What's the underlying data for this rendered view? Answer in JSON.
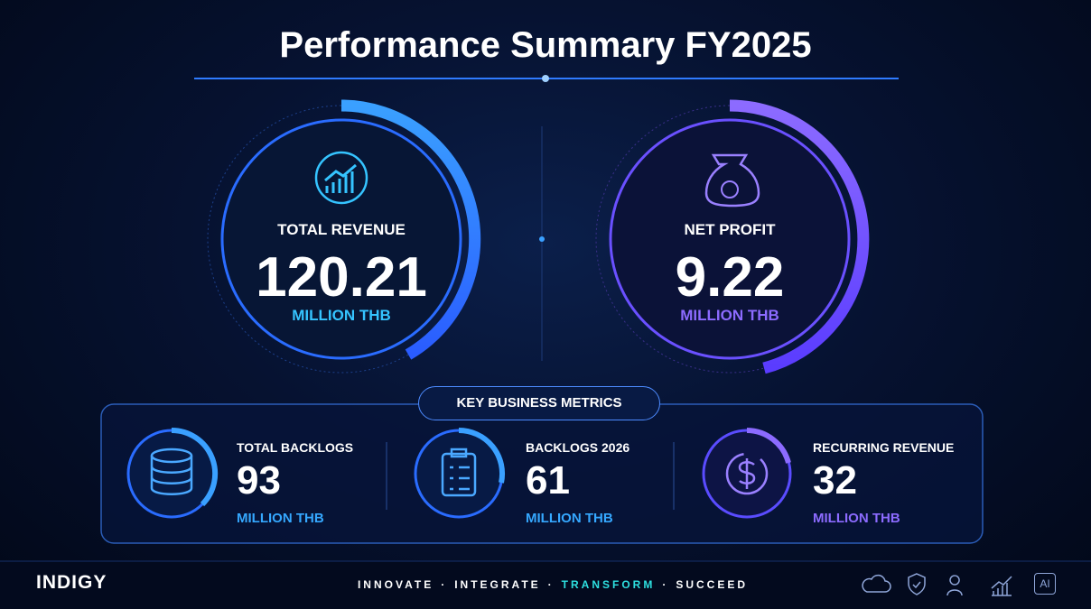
{
  "header": {
    "title": "Performance Summary FY2025"
  },
  "highlights": [
    {
      "label": "TOTAL REVENUE",
      "value": 120.21,
      "unit": "MILLION THB"
    },
    {
      "label": "NET PROFIT",
      "value": 9.22,
      "unit": "MILLION THB"
    }
  ],
  "metrics": {
    "title": "KEY BUSINESS METRICS",
    "items": [
      {
        "label": "TOTAL BACKLOGS",
        "value": 93,
        "unit": "MILLION THB"
      },
      {
        "label": "BACKLOGS 2026",
        "value": 61,
        "unit": "MILLION THB"
      },
      {
        "label": "RECURRING REVENUE",
        "value": 32,
        "unit": "MILLION THB"
      }
    ]
  },
  "footer": {
    "brand": "INDIGY",
    "tagline": [
      "INNOVATE",
      "INTEGRATE",
      "TRANSFORM",
      "SUCCEED"
    ],
    "separator": "·",
    "badge": "AI"
  }
}
